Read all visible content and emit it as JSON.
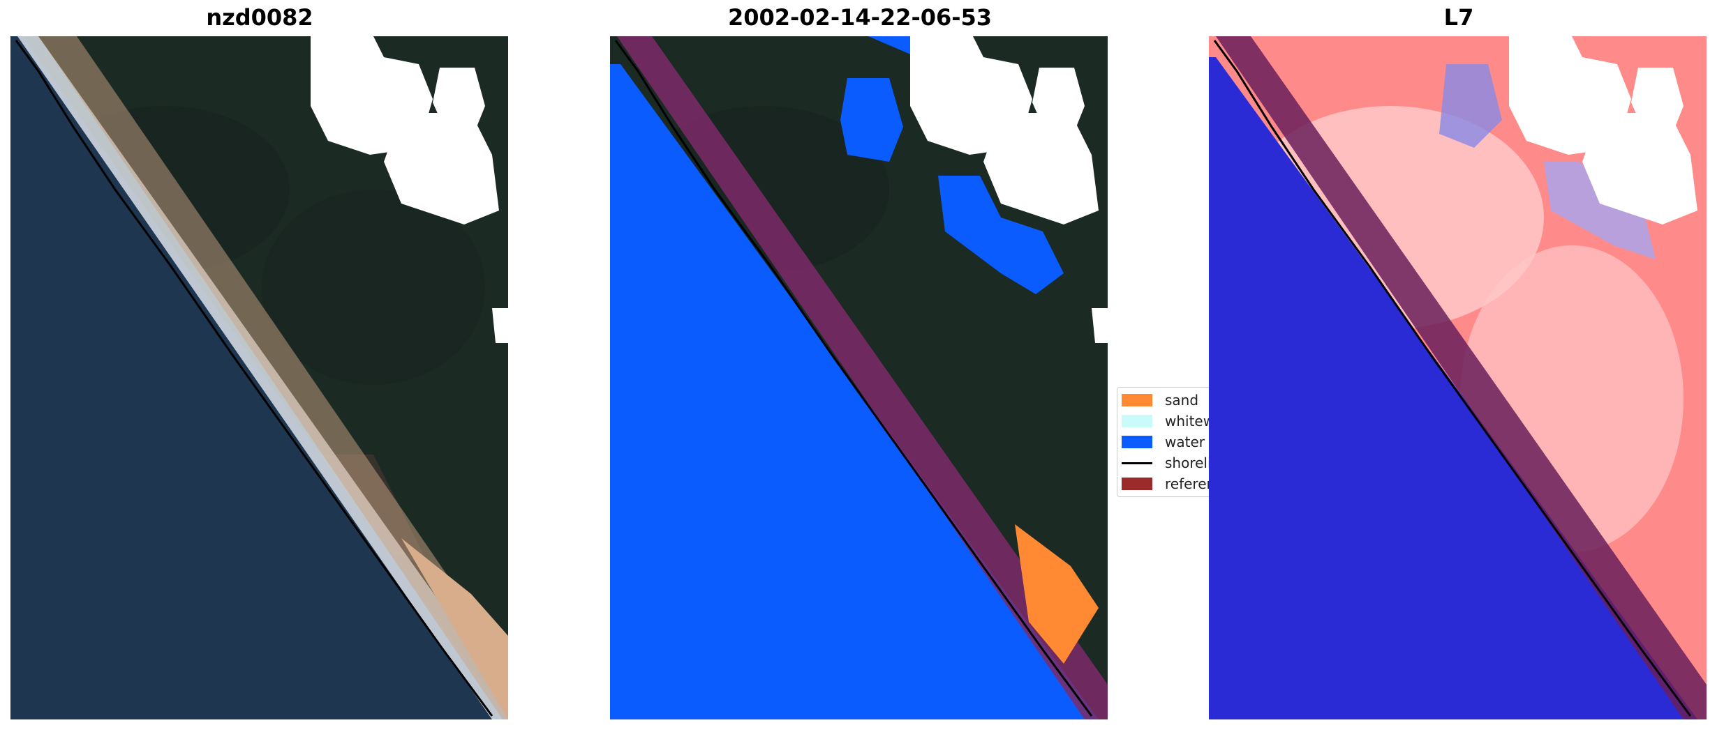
{
  "panels": [
    {
      "title": "nzd0082"
    },
    {
      "title": "2002-02-14-22-06-53"
    },
    {
      "title": "L7"
    }
  ],
  "legend": {
    "items": [
      {
        "label": "sand",
        "color": "#ff8a33",
        "kind": "patch"
      },
      {
        "label": "whitewater",
        "color": "#c9fbfb",
        "kind": "patch"
      },
      {
        "label": "water",
        "color": "#0a5cff",
        "kind": "patch"
      },
      {
        "label": "shoreline",
        "color": "#000000",
        "kind": "line"
      },
      {
        "label": "reference shoreline",
        "color": "#9b2a2a",
        "kind": "patch"
      }
    ]
  },
  "colors": {
    "ocean": "#1f3650",
    "land": "#1d2b24",
    "beach_sand": "#d8ad8c",
    "cloud_mask": "#ffffff",
    "water_class": "#0a5cff",
    "reference_band": "#8a1f4e",
    "mndwi_positive": "#2b2bd6",
    "mndwi_negative": "#ff4d4d"
  }
}
